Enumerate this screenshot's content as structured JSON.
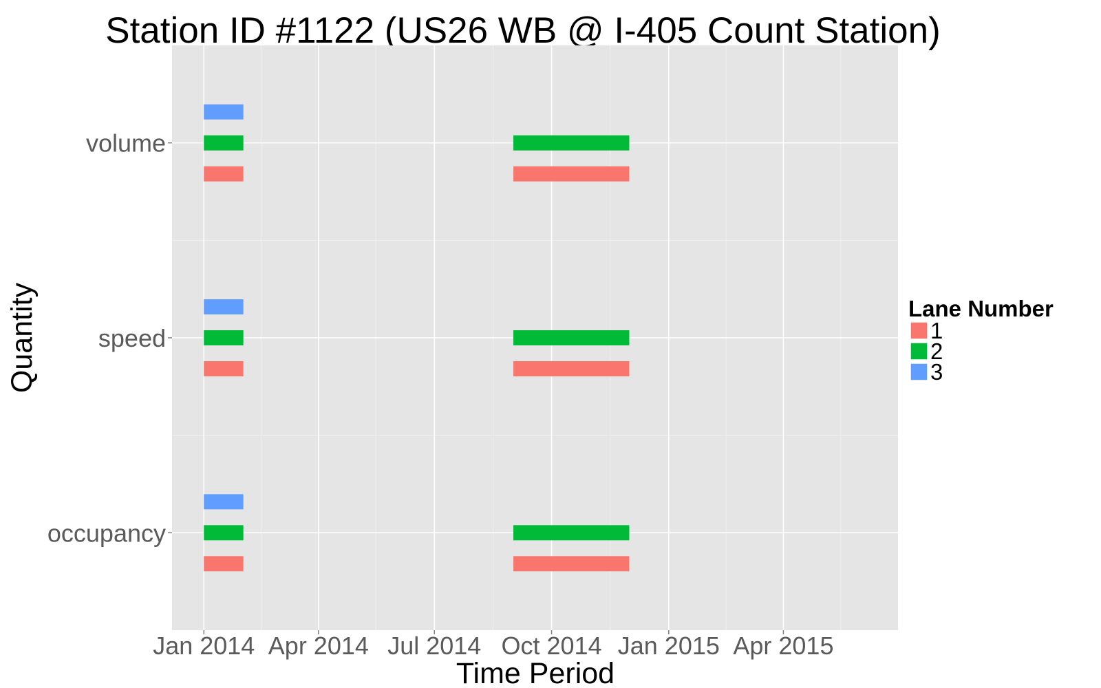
{
  "chart_data": {
    "type": "bar",
    "orientation": "horizontal-timeline",
    "title": "Station ID #1122 (US26 WB @ I-405 Count Station)",
    "xlabel": "Time Period",
    "ylabel": "Quantity",
    "categories": [
      "occupancy",
      "speed",
      "volume"
    ],
    "x_ticks": [
      "Jan 2014",
      "Apr 2014",
      "Jul 2014",
      "Oct 2014",
      "Jan 2015",
      "Apr 2015"
    ],
    "xlim": [
      "2013-12-07",
      "2015-06-30"
    ],
    "grid": true,
    "legend": {
      "title": "Lane Number",
      "position": "right"
    },
    "series": [
      {
        "name": "1",
        "color": "#F8766D",
        "segments": [
          {
            "category": "volume",
            "start": "2014-01-01",
            "end": "2014-02-01"
          },
          {
            "category": "volume",
            "start": "2014-09-01",
            "end": "2014-12-01"
          },
          {
            "category": "speed",
            "start": "2014-01-01",
            "end": "2014-02-01"
          },
          {
            "category": "speed",
            "start": "2014-09-01",
            "end": "2014-12-01"
          },
          {
            "category": "occupancy",
            "start": "2014-01-01",
            "end": "2014-02-01"
          },
          {
            "category": "occupancy",
            "start": "2014-09-01",
            "end": "2014-12-01"
          }
        ]
      },
      {
        "name": "2",
        "color": "#00BA38",
        "segments": [
          {
            "category": "volume",
            "start": "2014-01-01",
            "end": "2014-02-01"
          },
          {
            "category": "volume",
            "start": "2014-09-01",
            "end": "2014-12-01"
          },
          {
            "category": "speed",
            "start": "2014-01-01",
            "end": "2014-02-01"
          },
          {
            "category": "speed",
            "start": "2014-09-01",
            "end": "2014-12-01"
          },
          {
            "category": "occupancy",
            "start": "2014-01-01",
            "end": "2014-02-01"
          },
          {
            "category": "occupancy",
            "start": "2014-09-01",
            "end": "2014-12-01"
          }
        ]
      },
      {
        "name": "3",
        "color": "#619CFF",
        "segments": [
          {
            "category": "volume",
            "start": "2014-01-01",
            "end": "2014-02-01"
          },
          {
            "category": "speed",
            "start": "2014-01-01",
            "end": "2014-02-01"
          },
          {
            "category": "occupancy",
            "start": "2014-01-01",
            "end": "2014-02-01"
          }
        ]
      }
    ]
  }
}
